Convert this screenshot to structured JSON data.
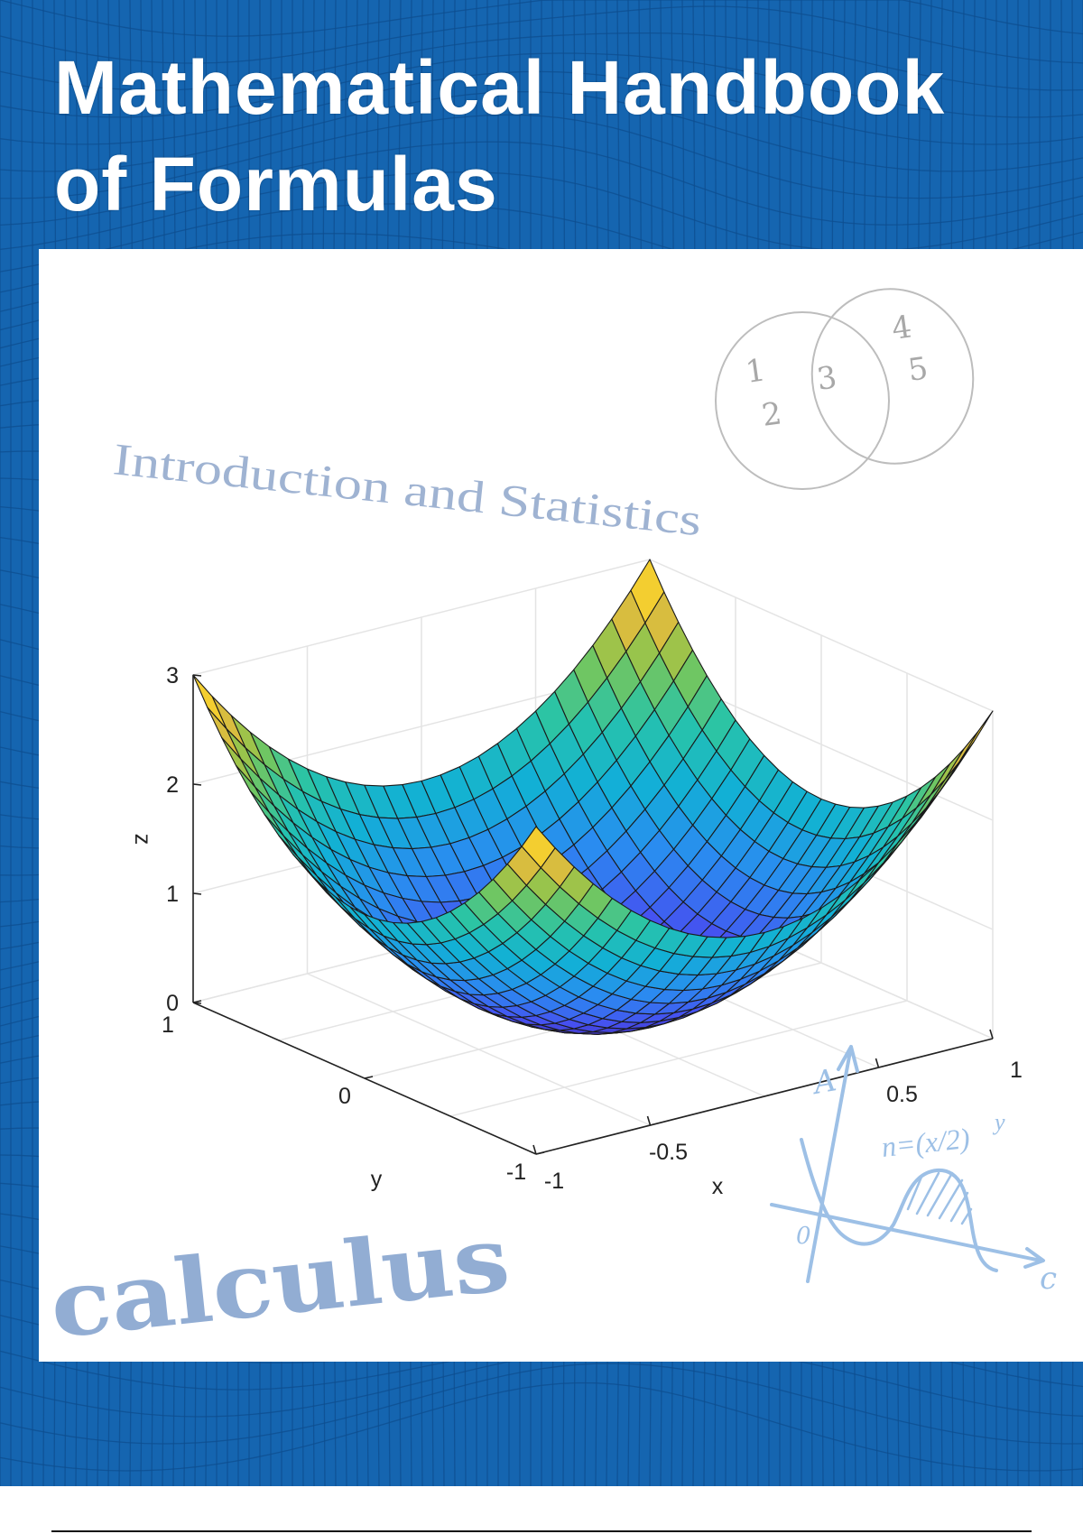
{
  "cover": {
    "title_line1": "Mathematical Handbook",
    "title_line2": "of Formulas",
    "subtitle": "Introduction and Statistics",
    "watermark_word": "calculus",
    "background_color": "#1565b0",
    "mesh_line_color": "#0d4d8f"
  },
  "venn": {
    "left_only": [
      "1",
      "2"
    ],
    "intersection": "3",
    "right_only": [
      "4",
      "5"
    ]
  },
  "sketch": {
    "formula_base": "n=(x/2)",
    "formula_exp": "y",
    "axis_label_a": "A",
    "origin_label": "0",
    "axis_label_c": "c",
    "color": "#9dc0e6"
  },
  "chart_data": {
    "type": "surface",
    "colormap": "parula",
    "xlabel": "x",
    "ylabel": "y",
    "zlabel": "z",
    "xlim": [
      -1,
      1
    ],
    "ylim": [
      -1,
      1
    ],
    "zlim": [
      0,
      3
    ],
    "x_ticks": [
      "-1",
      "-0.5",
      "0.5",
      "1"
    ],
    "x_tick_values": [
      -1,
      -0.5,
      0.5,
      1
    ],
    "y_ticks": [
      "1",
      "0",
      "-1"
    ],
    "y_tick_values": [
      1,
      0,
      -1
    ],
    "z_ticks": [
      "0",
      "1",
      "2",
      "3"
    ],
    "z_tick_values": [
      0,
      1,
      2,
      3
    ],
    "z_min_at_center": 0,
    "z_at_corners": 3,
    "grid": true
  }
}
